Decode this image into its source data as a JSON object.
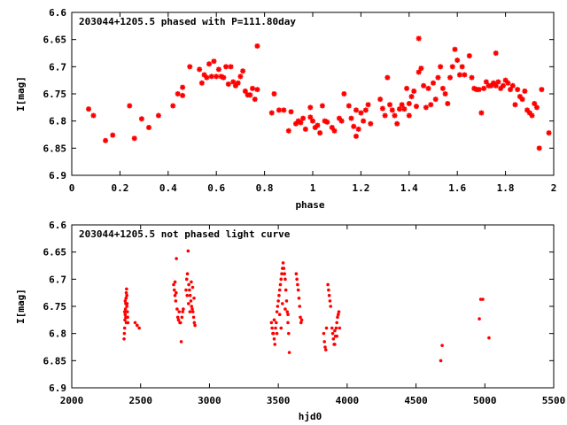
{
  "chart_data": [
    {
      "type": "scatter",
      "title": "203044+1205.5 phased with P=111.80day",
      "xlabel": "phase",
      "ylabel": "I[mag]",
      "xlim": [
        0,
        2
      ],
      "ylim": [
        6.6,
        6.9
      ],
      "y_inverted": true,
      "xticks": [
        0,
        0.2,
        0.4,
        0.6,
        0.8,
        1,
        1.2,
        1.4,
        1.6,
        1.8,
        2
      ],
      "xtick_labels": [
        "0",
        "0.2",
        "0.4",
        "0.6",
        "0.8",
        "1",
        "1.2",
        "1.4",
        "1.6",
        "1.8",
        "2"
      ],
      "yticks": [
        6.6,
        6.65,
        6.7,
        6.75,
        6.8,
        6.85,
        6.9
      ],
      "ytick_labels": [
        "6.6",
        "6.65",
        "6.7",
        "6.75",
        "6.8",
        "6.85",
        "6.9"
      ],
      "grid": false,
      "marker_color": "#ff0000",
      "marker": "star",
      "points": [
        [
          0.07,
          6.778
        ],
        [
          0.09,
          6.79
        ],
        [
          0.14,
          6.836
        ],
        [
          0.17,
          6.826
        ],
        [
          0.24,
          6.772
        ],
        [
          0.26,
          6.832
        ],
        [
          0.29,
          6.796
        ],
        [
          0.32,
          6.812
        ],
        [
          0.36,
          6.79
        ],
        [
          0.42,
          6.772
        ],
        [
          0.44,
          6.75
        ],
        [
          0.46,
          6.753
        ],
        [
          0.46,
          6.738
        ],
        [
          0.49,
          6.7
        ],
        [
          0.53,
          6.705
        ],
        [
          0.54,
          6.73
        ],
        [
          0.55,
          6.715
        ],
        [
          0.56,
          6.72
        ],
        [
          0.57,
          6.695
        ],
        [
          0.58,
          6.718
        ],
        [
          0.59,
          6.69
        ],
        [
          0.6,
          6.718
        ],
        [
          0.61,
          6.705
        ],
        [
          0.62,
          6.718
        ],
        [
          0.63,
          6.72
        ],
        [
          0.64,
          6.7
        ],
        [
          0.65,
          6.732
        ],
        [
          0.66,
          6.7
        ],
        [
          0.67,
          6.728
        ],
        [
          0.68,
          6.735
        ],
        [
          0.69,
          6.73
        ],
        [
          0.7,
          6.718
        ],
        [
          0.71,
          6.708
        ],
        [
          0.72,
          6.745
        ],
        [
          0.73,
          6.752
        ],
        [
          0.74,
          6.752
        ],
        [
          0.75,
          6.74
        ],
        [
          0.76,
          6.76
        ],
        [
          0.77,
          6.742
        ],
        [
          0.77,
          6.662
        ],
        [
          0.83,
          6.785
        ],
        [
          0.84,
          6.75
        ],
        [
          0.86,
          6.78
        ],
        [
          0.88,
          6.78
        ],
        [
          0.9,
          6.818
        ],
        [
          0.91,
          6.783
        ],
        [
          0.93,
          6.805
        ],
        [
          0.94,
          6.8
        ],
        [
          0.95,
          6.803
        ],
        [
          0.96,
          6.795
        ],
        [
          0.97,
          6.815
        ],
        [
          0.99,
          6.793
        ],
        [
          0.99,
          6.775
        ],
        [
          1.0,
          6.8
        ],
        [
          1.01,
          6.812
        ],
        [
          1.02,
          6.808
        ],
        [
          1.03,
          6.822
        ],
        [
          1.04,
          6.772
        ],
        [
          1.05,
          6.8
        ],
        [
          1.06,
          6.802
        ],
        [
          1.08,
          6.812
        ],
        [
          1.09,
          6.818
        ],
        [
          1.11,
          6.795
        ],
        [
          1.12,
          6.8
        ],
        [
          1.13,
          6.75
        ],
        [
          1.15,
          6.772
        ],
        [
          1.16,
          6.795
        ],
        [
          1.17,
          6.81
        ],
        [
          1.18,
          6.828
        ],
        [
          1.18,
          6.78
        ],
        [
          1.19,
          6.815
        ],
        [
          1.2,
          6.785
        ],
        [
          1.21,
          6.8
        ],
        [
          1.22,
          6.78
        ],
        [
          1.23,
          6.77
        ],
        [
          1.24,
          6.805
        ],
        [
          1.28,
          6.76
        ],
        [
          1.29,
          6.777
        ],
        [
          1.3,
          6.79
        ],
        [
          1.31,
          6.72
        ],
        [
          1.32,
          6.77
        ],
        [
          1.33,
          6.78
        ],
        [
          1.34,
          6.79
        ],
        [
          1.35,
          6.805
        ],
        [
          1.36,
          6.778
        ],
        [
          1.37,
          6.77
        ],
        [
          1.38,
          6.778
        ],
        [
          1.39,
          6.74
        ],
        [
          1.4,
          6.768
        ],
        [
          1.4,
          6.79
        ],
        [
          1.41,
          6.755
        ],
        [
          1.42,
          6.745
        ],
        [
          1.43,
          6.773
        ],
        [
          1.44,
          6.71
        ],
        [
          1.44,
          6.648
        ],
        [
          1.45,
          6.703
        ],
        [
          1.46,
          6.735
        ],
        [
          1.47,
          6.775
        ],
        [
          1.48,
          6.74
        ],
        [
          1.49,
          6.77
        ],
        [
          1.5,
          6.73
        ],
        [
          1.51,
          6.76
        ],
        [
          1.52,
          6.72
        ],
        [
          1.53,
          6.7
        ],
        [
          1.54,
          6.74
        ],
        [
          1.55,
          6.75
        ],
        [
          1.56,
          6.768
        ],
        [
          1.57,
          6.72
        ],
        [
          1.58,
          6.7
        ],
        [
          1.59,
          6.668
        ],
        [
          1.6,
          6.688
        ],
        [
          1.61,
          6.715
        ],
        [
          1.62,
          6.7
        ],
        [
          1.63,
          6.715
        ],
        [
          1.65,
          6.68
        ],
        [
          1.66,
          6.72
        ],
        [
          1.67,
          6.74
        ],
        [
          1.68,
          6.742
        ],
        [
          1.69,
          6.742
        ],
        [
          1.7,
          6.785
        ],
        [
          1.71,
          6.74
        ],
        [
          1.72,
          6.728
        ],
        [
          1.73,
          6.735
        ],
        [
          1.74,
          6.735
        ],
        [
          1.75,
          6.73
        ],
        [
          1.76,
          6.735
        ],
        [
          1.76,
          6.675
        ],
        [
          1.77,
          6.728
        ],
        [
          1.78,
          6.74
        ],
        [
          1.79,
          6.735
        ],
        [
          1.8,
          6.725
        ],
        [
          1.81,
          6.73
        ],
        [
          1.82,
          6.742
        ],
        [
          1.83,
          6.735
        ],
        [
          1.84,
          6.77
        ],
        [
          1.85,
          6.742
        ],
        [
          1.86,
          6.755
        ],
        [
          1.87,
          6.76
        ],
        [
          1.88,
          6.745
        ],
        [
          1.89,
          6.78
        ],
        [
          1.9,
          6.785
        ],
        [
          1.91,
          6.79
        ],
        [
          1.92,
          6.768
        ],
        [
          1.93,
          6.775
        ],
        [
          1.94,
          6.85
        ],
        [
          1.95,
          6.742
        ],
        [
          1.98,
          6.822
        ]
      ]
    },
    {
      "type": "scatter",
      "title": "203044+1205.5 not phased light curve",
      "xlabel": "hjd0",
      "ylabel": "I[mag]",
      "xlim": [
        2000,
        5500
      ],
      "ylim": [
        6.6,
        6.9
      ],
      "y_inverted": true,
      "xticks": [
        2000,
        2500,
        3000,
        3500,
        4000,
        4500,
        5000,
        5500
      ],
      "xtick_labels": [
        "2000",
        "2500",
        "3000",
        "3500",
        "4000",
        "4500",
        "5000",
        "5500"
      ],
      "yticks": [
        6.6,
        6.65,
        6.7,
        6.75,
        6.8,
        6.85,
        6.9
      ],
      "ytick_labels": [
        "6.6",
        "6.65",
        "6.7",
        "6.75",
        "6.8",
        "6.85",
        "6.9"
      ],
      "grid": false,
      "marker_color": "#ff0000",
      "marker": "dot",
      "points": [
        [
          2380,
          6.81
        ],
        [
          2382,
          6.8
        ],
        [
          2384,
          6.79
        ],
        [
          2386,
          6.775
        ],
        [
          2388,
          6.765
        ],
        [
          2390,
          6.755
        ],
        [
          2392,
          6.745
        ],
        [
          2394,
          6.735
        ],
        [
          2396,
          6.725
        ],
        [
          2398,
          6.718
        ],
        [
          2400,
          6.73
        ],
        [
          2402,
          6.745
        ],
        [
          2404,
          6.76
        ],
        [
          2406,
          6.77
        ],
        [
          2408,
          6.78
        ],
        [
          2384,
          6.76
        ],
        [
          2392,
          6.77
        ],
        [
          2400,
          6.75
        ],
        [
          2388,
          6.74
        ],
        [
          2396,
          6.78
        ],
        [
          2460,
          6.78
        ],
        [
          2475,
          6.785
        ],
        [
          2490,
          6.79
        ],
        [
          2740,
          6.71
        ],
        [
          2745,
          6.72
        ],
        [
          2750,
          6.73
        ],
        [
          2755,
          6.74
        ],
        [
          2760,
          6.662
        ],
        [
          2765,
          6.755
        ],
        [
          2770,
          6.77
        ],
        [
          2775,
          6.775
        ],
        [
          2780,
          6.76
        ],
        [
          2785,
          6.78
        ],
        [
          2790,
          6.78
        ],
        [
          2795,
          6.815
        ],
        [
          2800,
          6.77
        ],
        [
          2805,
          6.76
        ],
        [
          2810,
          6.755
        ],
        [
          2750,
          6.705
        ],
        [
          2758,
          6.725
        ],
        [
          2830,
          6.72
        ],
        [
          2835,
          6.7
        ],
        [
          2840,
          6.69
        ],
        [
          2845,
          6.648
        ],
        [
          2850,
          6.71
        ],
        [
          2855,
          6.72
        ],
        [
          2860,
          6.73
        ],
        [
          2865,
          6.74
        ],
        [
          2870,
          6.75
        ],
        [
          2875,
          6.755
        ],
        [
          2880,
          6.76
        ],
        [
          2885,
          6.77
        ],
        [
          2890,
          6.78
        ],
        [
          2895,
          6.785
        ],
        [
          2838,
          6.73
        ],
        [
          2848,
          6.745
        ],
        [
          2858,
          6.76
        ],
        [
          2868,
          6.705
        ],
        [
          2878,
          6.715
        ],
        [
          2888,
          6.735
        ],
        [
          3450,
          6.78
        ],
        [
          3455,
          6.79
        ],
        [
          3460,
          6.8
        ],
        [
          3465,
          6.8
        ],
        [
          3470,
          6.81
        ],
        [
          3475,
          6.82
        ],
        [
          3480,
          6.79
        ],
        [
          3485,
          6.78
        ],
        [
          3490,
          6.76
        ],
        [
          3495,
          6.75
        ],
        [
          3500,
          6.74
        ],
        [
          3505,
          6.73
        ],
        [
          3510,
          6.72
        ],
        [
          3515,
          6.71
        ],
        [
          3520,
          6.7
        ],
        [
          3525,
          6.69
        ],
        [
          3530,
          6.68
        ],
        [
          3535,
          6.67
        ],
        [
          3540,
          6.68
        ],
        [
          3545,
          6.69
        ],
        [
          3550,
          6.7
        ],
        [
          3555,
          6.72
        ],
        [
          3560,
          6.74
        ],
        [
          3565,
          6.76
        ],
        [
          3570,
          6.78
        ],
        [
          3575,
          6.8
        ],
        [
          3580,
          6.835
        ],
        [
          3470,
          6.775
        ],
        [
          3490,
          6.8
        ],
        [
          3510,
          6.765
        ],
        [
          3530,
          6.745
        ],
        [
          3550,
          6.755
        ],
        [
          3570,
          6.765
        ],
        [
          3520,
          6.79
        ],
        [
          3630,
          6.69
        ],
        [
          3635,
          6.7
        ],
        [
          3640,
          6.71
        ],
        [
          3645,
          6.72
        ],
        [
          3650,
          6.735
        ],
        [
          3655,
          6.75
        ],
        [
          3660,
          6.77
        ],
        [
          3665,
          6.78
        ],
        [
          3670,
          6.775
        ],
        [
          3830,
          6.8
        ],
        [
          3835,
          6.815
        ],
        [
          3840,
          6.825
        ],
        [
          3845,
          6.83
        ],
        [
          3850,
          6.79
        ],
        [
          3860,
          6.71
        ],
        [
          3865,
          6.72
        ],
        [
          3870,
          6.73
        ],
        [
          3875,
          6.74
        ],
        [
          3880,
          6.75
        ],
        [
          3890,
          6.79
        ],
        [
          3895,
          6.8
        ],
        [
          3900,
          6.81
        ],
        [
          3905,
          6.82
        ],
        [
          3910,
          6.82
        ],
        [
          3915,
          6.805
        ],
        [
          3920,
          6.79
        ],
        [
          3925,
          6.78
        ],
        [
          3930,
          6.77
        ],
        [
          3935,
          6.765
        ],
        [
          3940,
          6.76
        ],
        [
          3945,
          6.79
        ],
        [
          3910,
          6.795
        ],
        [
          3925,
          6.805
        ],
        [
          4680,
          6.85
        ],
        [
          4690,
          6.822
        ],
        [
          4960,
          6.773
        ],
        [
          4970,
          6.737
        ],
        [
          4985,
          6.737
        ],
        [
          5030,
          6.808
        ]
      ]
    }
  ]
}
